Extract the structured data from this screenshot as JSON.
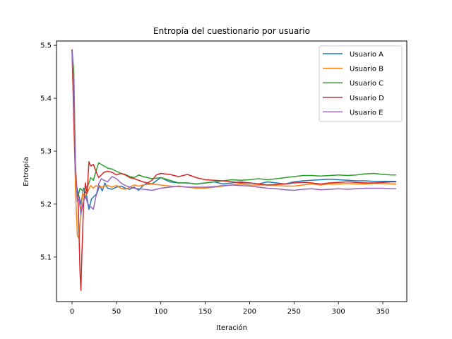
{
  "chart_data": {
    "type": "line",
    "title": "Entropía del cuestionario por usuario",
    "xlabel": "Iteración",
    "ylabel": "Entropía",
    "xlim": [
      -17.5,
      377
    ],
    "ylim": [
      5.0158,
      5.5082
    ],
    "x_ticks": [
      "0",
      "50",
      "100",
      "150",
      "200",
      "250",
      "300",
      "350"
    ],
    "y_ticks": [
      "5.1",
      "5.2",
      "5.3",
      "5.4",
      "5.5"
    ],
    "grid": false,
    "legend_position": "top-right",
    "series": [
      {
        "name": "Usuario A",
        "color": "#1f77b4",
        "points": [
          [
            0,
            5.492
          ],
          [
            2,
            5.4
          ],
          [
            4,
            5.24
          ],
          [
            7,
            5.22
          ],
          [
            10,
            5.2
          ],
          [
            13,
            5.23
          ],
          [
            16,
            5.22
          ],
          [
            19,
            5.19
          ],
          [
            22,
            5.21
          ],
          [
            25,
            5.215
          ],
          [
            28,
            5.22
          ],
          [
            31,
            5.235
          ],
          [
            34,
            5.225
          ],
          [
            37,
            5.24
          ],
          [
            40,
            5.23
          ],
          [
            45,
            5.228
          ],
          [
            50,
            5.232
          ],
          [
            55,
            5.234
          ],
          [
            60,
            5.23
          ],
          [
            65,
            5.228
          ],
          [
            70,
            5.232
          ],
          [
            75,
            5.226
          ],
          [
            80,
            5.235
          ],
          [
            85,
            5.24
          ],
          [
            90,
            5.238
          ],
          [
            95,
            5.244
          ],
          [
            100,
            5.25
          ],
          [
            105,
            5.246
          ],
          [
            110,
            5.242
          ],
          [
            120,
            5.24
          ],
          [
            130,
            5.24
          ],
          [
            140,
            5.238
          ],
          [
            150,
            5.24
          ],
          [
            160,
            5.242
          ],
          [
            170,
            5.238
          ],
          [
            180,
            5.24
          ],
          [
            190,
            5.242
          ],
          [
            200,
            5.24
          ],
          [
            210,
            5.238
          ],
          [
            220,
            5.242
          ],
          [
            230,
            5.24
          ],
          [
            240,
            5.238
          ],
          [
            250,
            5.242
          ],
          [
            260,
            5.244
          ],
          [
            270,
            5.245
          ],
          [
            280,
            5.246
          ],
          [
            290,
            5.247
          ],
          [
            300,
            5.246
          ],
          [
            310,
            5.245
          ],
          [
            320,
            5.244
          ],
          [
            330,
            5.244
          ],
          [
            340,
            5.243
          ],
          [
            350,
            5.243
          ],
          [
            360,
            5.243
          ],
          [
            365,
            5.243
          ]
        ]
      },
      {
        "name": "Usuario B",
        "color": "#ff7f0e",
        "points": [
          [
            0,
            5.492
          ],
          [
            2,
            5.36
          ],
          [
            4,
            5.22
          ],
          [
            6,
            5.14
          ],
          [
            8,
            5.135
          ],
          [
            10,
            5.19
          ],
          [
            12,
            5.22
          ],
          [
            15,
            5.215
          ],
          [
            18,
            5.225
          ],
          [
            21,
            5.235
          ],
          [
            24,
            5.23
          ],
          [
            27,
            5.235
          ],
          [
            30,
            5.232
          ],
          [
            35,
            5.233
          ],
          [
            40,
            5.235
          ],
          [
            45,
            5.232
          ],
          [
            50,
            5.235
          ],
          [
            55,
            5.23
          ],
          [
            60,
            5.228
          ],
          [
            65,
            5.232
          ],
          [
            70,
            5.236
          ],
          [
            75,
            5.234
          ],
          [
            80,
            5.236
          ],
          [
            90,
            5.238
          ],
          [
            100,
            5.236
          ],
          [
            110,
            5.234
          ],
          [
            120,
            5.233
          ],
          [
            130,
            5.232
          ],
          [
            140,
            5.23
          ],
          [
            150,
            5.23
          ],
          [
            160,
            5.232
          ],
          [
            170,
            5.234
          ],
          [
            180,
            5.236
          ],
          [
            190,
            5.238
          ],
          [
            200,
            5.236
          ],
          [
            210,
            5.236
          ],
          [
            220,
            5.236
          ],
          [
            230,
            5.235
          ],
          [
            240,
            5.234
          ],
          [
            250,
            5.234
          ],
          [
            260,
            5.236
          ],
          [
            270,
            5.238
          ],
          [
            280,
            5.236
          ],
          [
            290,
            5.238
          ],
          [
            300,
            5.238
          ],
          [
            310,
            5.239
          ],
          [
            320,
            5.238
          ],
          [
            330,
            5.238
          ],
          [
            340,
            5.239
          ],
          [
            350,
            5.239
          ],
          [
            360,
            5.238
          ],
          [
            365,
            5.238
          ]
        ]
      },
      {
        "name": "Usuario C",
        "color": "#2ca02c",
        "points": [
          [
            0,
            5.492
          ],
          [
            2,
            5.45
          ],
          [
            4,
            5.26
          ],
          [
            6,
            5.21
          ],
          [
            9,
            5.23
          ],
          [
            12,
            5.225
          ],
          [
            15,
            5.23
          ],
          [
            18,
            5.235
          ],
          [
            21,
            5.25
          ],
          [
            24,
            5.245
          ],
          [
            27,
            5.262
          ],
          [
            30,
            5.278
          ],
          [
            33,
            5.275
          ],
          [
            36,
            5.272
          ],
          [
            40,
            5.268
          ],
          [
            45,
            5.266
          ],
          [
            50,
            5.262
          ],
          [
            55,
            5.258
          ],
          [
            60,
            5.256
          ],
          [
            65,
            5.252
          ],
          [
            70,
            5.25
          ],
          [
            75,
            5.255
          ],
          [
            80,
            5.252
          ],
          [
            90,
            5.248
          ],
          [
            100,
            5.25
          ],
          [
            110,
            5.245
          ],
          [
            120,
            5.24
          ],
          [
            130,
            5.24
          ],
          [
            140,
            5.238
          ],
          [
            150,
            5.24
          ],
          [
            160,
            5.242
          ],
          [
            170,
            5.244
          ],
          [
            180,
            5.246
          ],
          [
            190,
            5.245
          ],
          [
            200,
            5.246
          ],
          [
            210,
            5.248
          ],
          [
            220,
            5.246
          ],
          [
            230,
            5.248
          ],
          [
            240,
            5.25
          ],
          [
            250,
            5.252
          ],
          [
            260,
            5.254
          ],
          [
            270,
            5.254
          ],
          [
            280,
            5.253
          ],
          [
            290,
            5.254
          ],
          [
            300,
            5.255
          ],
          [
            310,
            5.254
          ],
          [
            320,
            5.255
          ],
          [
            330,
            5.257
          ],
          [
            340,
            5.258
          ],
          [
            350,
            5.256
          ],
          [
            360,
            5.255
          ],
          [
            365,
            5.255
          ]
        ]
      },
      {
        "name": "Usuario D",
        "color": "#d62728",
        "points": [
          [
            0,
            5.492
          ],
          [
            3,
            5.3
          ],
          [
            5,
            5.24
          ],
          [
            7,
            5.2
          ],
          [
            9,
            5.07
          ],
          [
            10,
            5.037
          ],
          [
            11,
            5.1
          ],
          [
            13,
            5.2
          ],
          [
            15,
            5.24
          ],
          [
            17,
            5.22
          ],
          [
            19,
            5.28
          ],
          [
            21,
            5.272
          ],
          [
            24,
            5.275
          ],
          [
            27,
            5.262
          ],
          [
            30,
            5.25
          ],
          [
            33,
            5.255
          ],
          [
            36,
            5.26
          ],
          [
            40,
            5.262
          ],
          [
            45,
            5.26
          ],
          [
            50,
            5.255
          ],
          [
            55,
            5.258
          ],
          [
            60,
            5.255
          ],
          [
            65,
            5.25
          ],
          [
            70,
            5.248
          ],
          [
            75,
            5.245
          ],
          [
            80,
            5.242
          ],
          [
            85,
            5.24
          ],
          [
            90,
            5.245
          ],
          [
            95,
            5.255
          ],
          [
            100,
            5.258
          ],
          [
            110,
            5.256
          ],
          [
            120,
            5.252
          ],
          [
            130,
            5.256
          ],
          [
            140,
            5.25
          ],
          [
            150,
            5.246
          ],
          [
            160,
            5.245
          ],
          [
            170,
            5.244
          ],
          [
            180,
            5.242
          ],
          [
            190,
            5.24
          ],
          [
            200,
            5.24
          ],
          [
            210,
            5.238
          ],
          [
            220,
            5.236
          ],
          [
            230,
            5.237
          ],
          [
            240,
            5.238
          ],
          [
            250,
            5.24
          ],
          [
            260,
            5.241
          ],
          [
            270,
            5.24
          ],
          [
            280,
            5.238
          ],
          [
            290,
            5.24
          ],
          [
            300,
            5.241
          ],
          [
            310,
            5.242
          ],
          [
            320,
            5.241
          ],
          [
            330,
            5.24
          ],
          [
            340,
            5.24
          ],
          [
            350,
            5.241
          ],
          [
            360,
            5.242
          ],
          [
            365,
            5.242
          ]
        ]
      },
      {
        "name": "Usuario E",
        "color": "#9467bd",
        "points": [
          [
            0,
            5.492
          ],
          [
            2,
            5.42
          ],
          [
            4,
            5.26
          ],
          [
            6,
            5.205
          ],
          [
            8,
            5.21
          ],
          [
            10,
            5.18
          ],
          [
            12,
            5.2
          ],
          [
            15,
            5.215
          ],
          [
            18,
            5.2
          ],
          [
            21,
            5.195
          ],
          [
            24,
            5.19
          ],
          [
            27,
            5.215
          ],
          [
            30,
            5.238
          ],
          [
            33,
            5.248
          ],
          [
            36,
            5.245
          ],
          [
            40,
            5.242
          ],
          [
            45,
            5.252
          ],
          [
            50,
            5.248
          ],
          [
            55,
            5.24
          ],
          [
            60,
            5.235
          ],
          [
            65,
            5.232
          ],
          [
            70,
            5.23
          ],
          [
            80,
            5.228
          ],
          [
            90,
            5.226
          ],
          [
            100,
            5.23
          ],
          [
            110,
            5.232
          ],
          [
            120,
            5.234
          ],
          [
            130,
            5.232
          ],
          [
            140,
            5.232
          ],
          [
            150,
            5.232
          ],
          [
            160,
            5.233
          ],
          [
            170,
            5.235
          ],
          [
            180,
            5.236
          ],
          [
            190,
            5.235
          ],
          [
            200,
            5.234
          ],
          [
            210,
            5.232
          ],
          [
            220,
            5.23
          ],
          [
            230,
            5.229
          ],
          [
            240,
            5.227
          ],
          [
            250,
            5.226
          ],
          [
            260,
            5.228
          ],
          [
            270,
            5.229
          ],
          [
            280,
            5.227
          ],
          [
            290,
            5.228
          ],
          [
            300,
            5.229
          ],
          [
            310,
            5.228
          ],
          [
            320,
            5.229
          ],
          [
            330,
            5.23
          ],
          [
            340,
            5.23
          ],
          [
            350,
            5.23
          ],
          [
            360,
            5.229
          ],
          [
            365,
            5.229
          ]
        ]
      }
    ]
  }
}
